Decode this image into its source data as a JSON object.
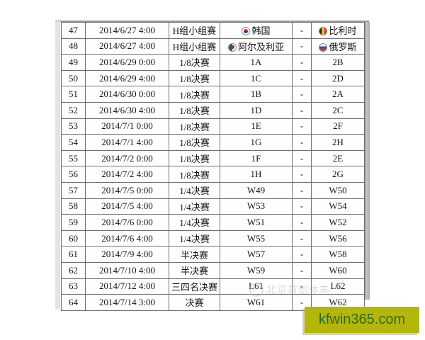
{
  "table": {
    "columns": [
      "match_no",
      "datetime",
      "stage",
      "team1",
      "separator",
      "team2"
    ],
    "rows": [
      {
        "no": "47",
        "datetime": "2014/6/27 4:00",
        "stage": "H组小组赛",
        "team1": "韩国",
        "team1_flag": "kr",
        "team1_icon": "south-korea-flag-icon",
        "sep": "-",
        "team2": "比利时",
        "team2_flag": "be",
        "team2_icon": "belgium-flag-icon"
      },
      {
        "no": "48",
        "datetime": "2014/6/27 4:00",
        "stage": "H组小组赛",
        "team1": "阿尔及利亚",
        "team1_flag": "dz",
        "team1_icon": "algeria-flag-icon",
        "sep": "-",
        "team2": "俄罗斯",
        "team2_flag": "ru",
        "team2_icon": "russia-flag-icon"
      },
      {
        "no": "49",
        "datetime": "2014/6/29 0:00",
        "stage": "1/8决赛",
        "team1": "1A",
        "sep": "-",
        "team2": "2B"
      },
      {
        "no": "50",
        "datetime": "2014/6/29 4:00",
        "stage": "1/8决赛",
        "team1": "1C",
        "sep": "-",
        "team2": "2D"
      },
      {
        "no": "51",
        "datetime": "2014/6/30 0:00",
        "stage": "1/8决赛",
        "team1": "1B",
        "sep": "-",
        "team2": "2A"
      },
      {
        "no": "52",
        "datetime": "2014/6/30 4:00",
        "stage": "1/8决赛",
        "team1": "1D",
        "sep": "-",
        "team2": "2C"
      },
      {
        "no": "53",
        "datetime": "2014/7/1 0:00",
        "stage": "1/8决赛",
        "team1": "1E",
        "sep": "-",
        "team2": "2F"
      },
      {
        "no": "54",
        "datetime": "2014/7/1 4:00",
        "stage": "1/8决赛",
        "team1": "1G",
        "sep": "-",
        "team2": "2H"
      },
      {
        "no": "55",
        "datetime": "2014/7/2 0:00",
        "stage": "1/8决赛",
        "team1": "1F",
        "sep": "-",
        "team2": "2E"
      },
      {
        "no": "56",
        "datetime": "2014/7/2 4:00",
        "stage": "1/8决赛",
        "team1": "1H",
        "sep": "-",
        "team2": "2G"
      },
      {
        "no": "57",
        "datetime": "2014/7/5 0:00",
        "stage": "1/4决赛",
        "team1": "W49",
        "sep": "-",
        "team2": "W50"
      },
      {
        "no": "58",
        "datetime": "2014/7/5 4:00",
        "stage": "1/4决赛",
        "team1": "W53",
        "sep": "-",
        "team2": "W54"
      },
      {
        "no": "59",
        "datetime": "2014/7/6 0:00",
        "stage": "1/4决赛",
        "team1": "W51",
        "sep": "-",
        "team2": "W52"
      },
      {
        "no": "60",
        "datetime": "2014/7/6 4:00",
        "stage": "1/4决赛",
        "team1": "W55",
        "sep": "-",
        "team2": "W56"
      },
      {
        "no": "61",
        "datetime": "2014/7/9 4:00",
        "stage": "半决赛",
        "team1": "W57",
        "sep": "-",
        "team2": "W58"
      },
      {
        "no": "62",
        "datetime": "2014/7/10 4:00",
        "stage": "半决赛",
        "team1": "W59",
        "sep": "-",
        "team2": "W60"
      },
      {
        "no": "63",
        "datetime": "2014/7/12 4:00",
        "stage": "三四名决赛",
        "team1": "L61",
        "sep": "-",
        "team2": "L62"
      },
      {
        "no": "64",
        "datetime": "2014/7/14 3:00",
        "stage": "决赛",
        "team1": "W61",
        "sep": "-",
        "team2": "W62"
      }
    ]
  },
  "watermark": {
    "icon": "circle-logo-icon",
    "text": "北京首创体美"
  },
  "banner": {
    "text": "kfwin365.com",
    "bg_color": "#b4b608",
    "text_color": "#2f6b27"
  }
}
